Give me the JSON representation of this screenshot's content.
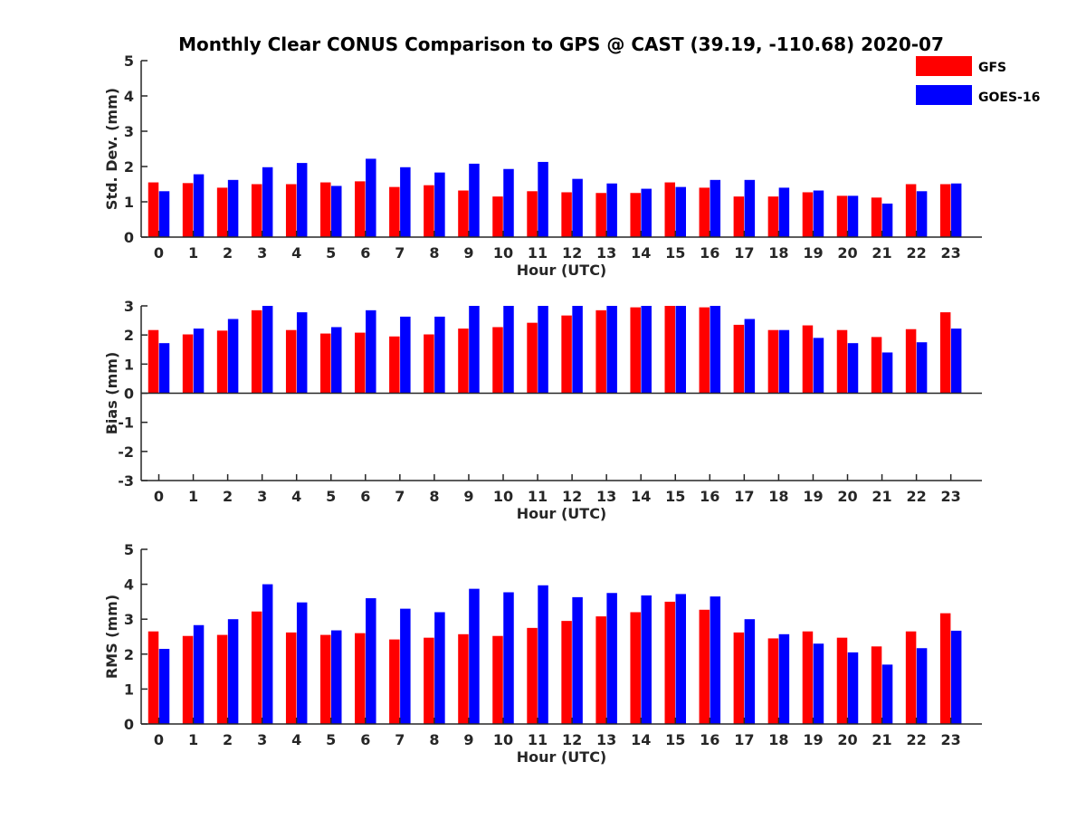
{
  "title": "Monthly Clear CONUS Comparison to GPS @ CAST (39.19, -110.68) 2020-07",
  "colors": {
    "gfs": "#ff0000",
    "goes": "#0000ff",
    "axis": "#262626"
  },
  "legend": [
    {
      "name": "GFS",
      "color": "#ff0000"
    },
    {
      "name": "GOES-16",
      "color": "#0000ff"
    }
  ],
  "chart_data": [
    {
      "type": "bar",
      "ylabel": "Std. Dev. (mm)",
      "xlabel": "Hour (UTC)",
      "ylim": [
        0,
        5
      ],
      "yticks": [
        0,
        1,
        2,
        3,
        4,
        5
      ],
      "categories": [
        "0",
        "1",
        "2",
        "3",
        "4",
        "5",
        "6",
        "7",
        "8",
        "9",
        "10",
        "11",
        "12",
        "13",
        "14",
        "15",
        "16",
        "17",
        "18",
        "19",
        "20",
        "21",
        "22",
        "23"
      ],
      "series": [
        {
          "name": "GFS",
          "values": [
            1.55,
            1.53,
            1.4,
            1.5,
            1.5,
            1.55,
            1.58,
            1.42,
            1.47,
            1.32,
            1.15,
            1.3,
            1.27,
            1.25,
            1.25,
            1.55,
            1.4,
            1.15,
            1.15,
            1.27,
            1.17,
            1.12,
            1.5,
            1.5
          ]
        },
        {
          "name": "GOES-16",
          "values": [
            1.3,
            1.78,
            1.62,
            1.98,
            2.1,
            1.45,
            2.22,
            1.98,
            1.83,
            2.08,
            1.93,
            2.13,
            1.65,
            1.52,
            1.37,
            1.42,
            1.62,
            1.62,
            1.4,
            1.32,
            1.17,
            0.95,
            1.3,
            1.52
          ]
        }
      ]
    },
    {
      "type": "bar",
      "ylabel": "Bias (mm)",
      "xlabel": "Hour (UTC)",
      "ylim": [
        -3,
        3
      ],
      "yticks": [
        -3,
        -2,
        -1,
        0,
        1,
        2,
        3
      ],
      "categories": [
        "0",
        "1",
        "2",
        "3",
        "4",
        "5",
        "6",
        "7",
        "8",
        "9",
        "10",
        "11",
        "12",
        "13",
        "14",
        "15",
        "16",
        "17",
        "18",
        "19",
        "20",
        "21",
        "22",
        "23"
      ],
      "series": [
        {
          "name": "GFS",
          "values": [
            2.17,
            2.02,
            2.15,
            2.85,
            2.17,
            2.05,
            2.08,
            1.95,
            2.02,
            2.22,
            2.27,
            2.42,
            2.67,
            2.85,
            2.95,
            3.0,
            2.95,
            2.35,
            2.17,
            2.33,
            2.17,
            1.93,
            2.2,
            2.78
          ]
        },
        {
          "name": "GOES-16",
          "values": [
            1.72,
            2.22,
            2.55,
            3.0,
            2.78,
            2.27,
            2.85,
            2.63,
            2.63,
            3.0,
            3.0,
            3.0,
            3.0,
            3.0,
            3.0,
            3.0,
            3.0,
            2.55,
            2.17,
            1.9,
            1.72,
            1.4,
            1.75,
            2.22
          ]
        }
      ]
    },
    {
      "type": "bar",
      "ylabel": "RMS (mm)",
      "xlabel": "Hour (UTC)",
      "ylim": [
        0,
        5
      ],
      "yticks": [
        0,
        1,
        2,
        3,
        4,
        5
      ],
      "categories": [
        "0",
        "1",
        "2",
        "3",
        "4",
        "5",
        "6",
        "7",
        "8",
        "9",
        "10",
        "11",
        "12",
        "13",
        "14",
        "15",
        "16",
        "17",
        "18",
        "19",
        "20",
        "21",
        "22",
        "23"
      ],
      "series": [
        {
          "name": "GFS",
          "values": [
            2.65,
            2.52,
            2.55,
            3.22,
            2.62,
            2.55,
            2.6,
            2.42,
            2.47,
            2.57,
            2.52,
            2.75,
            2.95,
            3.08,
            3.2,
            3.5,
            3.27,
            2.62,
            2.45,
            2.65,
            2.47,
            2.22,
            2.65,
            3.17
          ]
        },
        {
          "name": "GOES-16",
          "values": [
            2.15,
            2.83,
            3.0,
            4.0,
            3.48,
            2.68,
            3.6,
            3.3,
            3.2,
            3.87,
            3.77,
            3.97,
            3.63,
            3.75,
            3.68,
            3.72,
            3.65,
            3.0,
            2.57,
            2.3,
            2.05,
            1.7,
            2.17,
            2.67
          ]
        }
      ]
    }
  ]
}
